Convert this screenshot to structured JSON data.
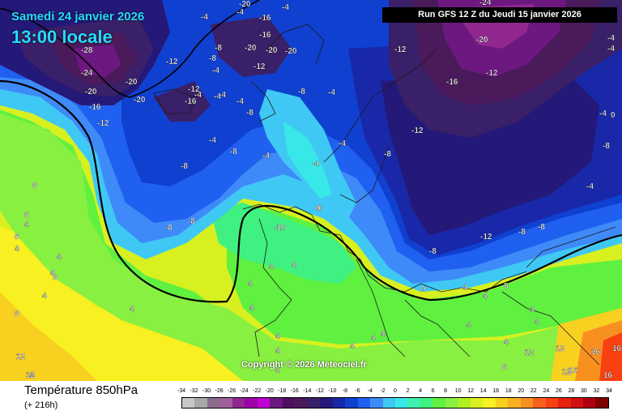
{
  "header": {
    "date": "Samedi 24 janvier 2026",
    "time": "13:00 locale",
    "run": "Run GFS 12 Z du Jeudi 15 janvier 2026"
  },
  "copyright": "Copyright © 2026 Meteociel.fr",
  "footer": {
    "title": "Température 850hPa",
    "lead": "(+ 216h)"
  },
  "scale": {
    "labels": [
      "-34",
      "-32",
      "-30",
      "-28",
      "-26",
      "-24",
      "-22",
      "-20",
      "-18",
      "-16",
      "-14",
      "-12",
      "-10",
      "-8",
      "-6",
      "-4",
      "-2",
      "0",
      "2",
      "4",
      "6",
      "8",
      "10",
      "12",
      "14",
      "16",
      "18",
      "20",
      "22",
      "24",
      "26",
      "28",
      "30",
      "32",
      "34"
    ],
    "colors": [
      "#c8c8c8",
      "#a8a8a8",
      "#8c6c8c",
      "#a060a0",
      "#902890",
      "#a000a8",
      "#c000d0",
      "#6c1880",
      "#501060",
      "#4a1a5a",
      "#3a2068",
      "#241878",
      "#1828a8",
      "#1040d0",
      "#2060f0",
      "#3e8af8",
      "#40c8f4",
      "#38e8e8",
      "#40f0b0",
      "#40f080",
      "#60f040",
      "#88f040",
      "#b0f020",
      "#d8f020",
      "#f8f020",
      "#f8d020",
      "#f8b020",
      "#f89020",
      "#f86020",
      "#f84010",
      "#e82010",
      "#d01010",
      "#b00010",
      "#800000"
    ]
  },
  "map_labels": [
    {
      "text": "-28"
    },
    {
      "text": "-24"
    },
    {
      "text": "-20"
    },
    {
      "text": "-20"
    },
    {
      "text": "-16"
    },
    {
      "text": "-20"
    },
    {
      "text": "-12"
    },
    {
      "text": "-12"
    },
    {
      "text": "-16"
    },
    {
      "text": "-20"
    },
    {
      "text": "-8"
    },
    {
      "text": "-8"
    },
    {
      "text": "-4"
    },
    {
      "text": "-4"
    },
    {
      "text": "-4"
    },
    {
      "text": "-8"
    },
    {
      "text": "-16"
    },
    {
      "text": "-20"
    },
    {
      "text": "-20"
    },
    {
      "text": "-8"
    },
    {
      "text": "-4"
    },
    {
      "text": "-12"
    },
    {
      "text": "-20"
    },
    {
      "text": "-4"
    },
    {
      "text": "-4"
    },
    {
      "text": "-16"
    },
    {
      "text": "-4"
    },
    {
      "text": "-4"
    },
    {
      "text": "-4"
    },
    {
      "text": "-8"
    },
    {
      "text": "-4"
    },
    {
      "text": "-12"
    },
    {
      "text": "-8"
    },
    {
      "text": "-4"
    },
    {
      "text": "-8"
    },
    {
      "text": "-8"
    },
    {
      "text": "-8"
    },
    {
      "text": "-4"
    },
    {
      "text": "-4"
    },
    {
      "text": "0"
    },
    {
      "text": "-10"
    },
    {
      "text": "-12"
    },
    {
      "text": "-16"
    },
    {
      "text": "-20"
    },
    {
      "text": "-24"
    },
    {
      "text": "-12"
    },
    {
      "text": "-8"
    },
    {
      "text": "-12"
    },
    {
      "text": "-8"
    },
    {
      "text": "-12"
    },
    {
      "text": "-8"
    },
    {
      "text": "-4"
    },
    {
      "text": "-4"
    },
    {
      "text": "-4"
    },
    {
      "text": "-4"
    },
    {
      "text": "0"
    },
    {
      "text": "0"
    },
    {
      "text": "4"
    },
    {
      "text": "4"
    },
    {
      "text": "4"
    },
    {
      "text": "4"
    },
    {
      "text": "8"
    },
    {
      "text": "8"
    },
    {
      "text": "8"
    },
    {
      "text": "4"
    },
    {
      "text": "4"
    },
    {
      "text": "4"
    },
    {
      "text": "4"
    },
    {
      "text": "4"
    },
    {
      "text": "4"
    },
    {
      "text": "8"
    },
    {
      "text": "12"
    },
    {
      "text": "4"
    },
    {
      "text": "4"
    },
    {
      "text": "4"
    },
    {
      "text": "4"
    },
    {
      "text": "4"
    },
    {
      "text": "4"
    },
    {
      "text": "4"
    },
    {
      "text": "4"
    },
    {
      "text": "4"
    },
    {
      "text": "8"
    },
    {
      "text": "4"
    },
    {
      "text": "4"
    },
    {
      "text": "4"
    },
    {
      "text": "8"
    },
    {
      "text": "12"
    },
    {
      "text": "12"
    },
    {
      "text": "12"
    },
    {
      "text": "16"
    },
    {
      "text": "16"
    },
    {
      "text": "16"
    },
    {
      "text": "16"
    },
    {
      "text": "8"
    },
    {
      "text": "12"
    },
    {
      "text": "0"
    },
    {
      "text": "-4"
    },
    {
      "text": "-8"
    }
  ]
}
